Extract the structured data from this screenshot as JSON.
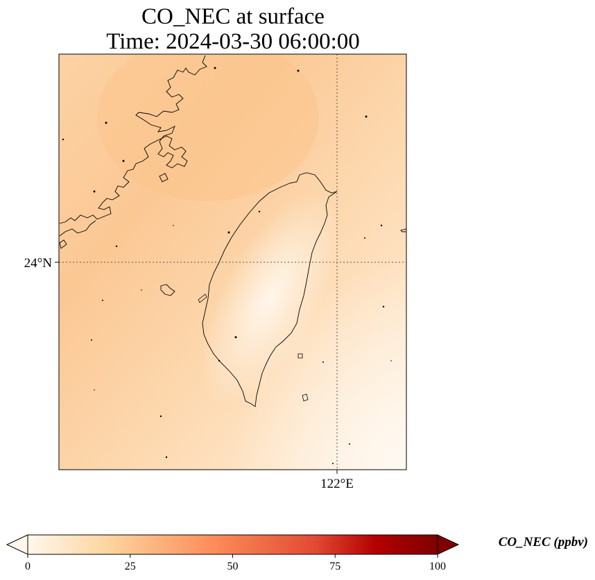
{
  "title": {
    "line1": "CO_NEC at surface",
    "line2": "Time: 2024-03-30 06:00:00"
  },
  "map": {
    "lat_tick_label": "24°N",
    "lon_tick_label": "122°E",
    "colors": {
      "field_dark": "#fbc894",
      "field_light": "#fff3e4",
      "coastline": "#000000",
      "gridline": "#555555"
    }
  },
  "colorbar": {
    "label": "CO_NEC (ppbv)",
    "ticks": [
      "0",
      "25",
      "50",
      "75",
      "100"
    ],
    "min": 0,
    "max": 100,
    "cmap": "OrRd",
    "colors": [
      "#fff7ec",
      "#fdd49e",
      "#fc8d59",
      "#d7301f",
      "#b30000",
      "#7f0000"
    ]
  }
}
